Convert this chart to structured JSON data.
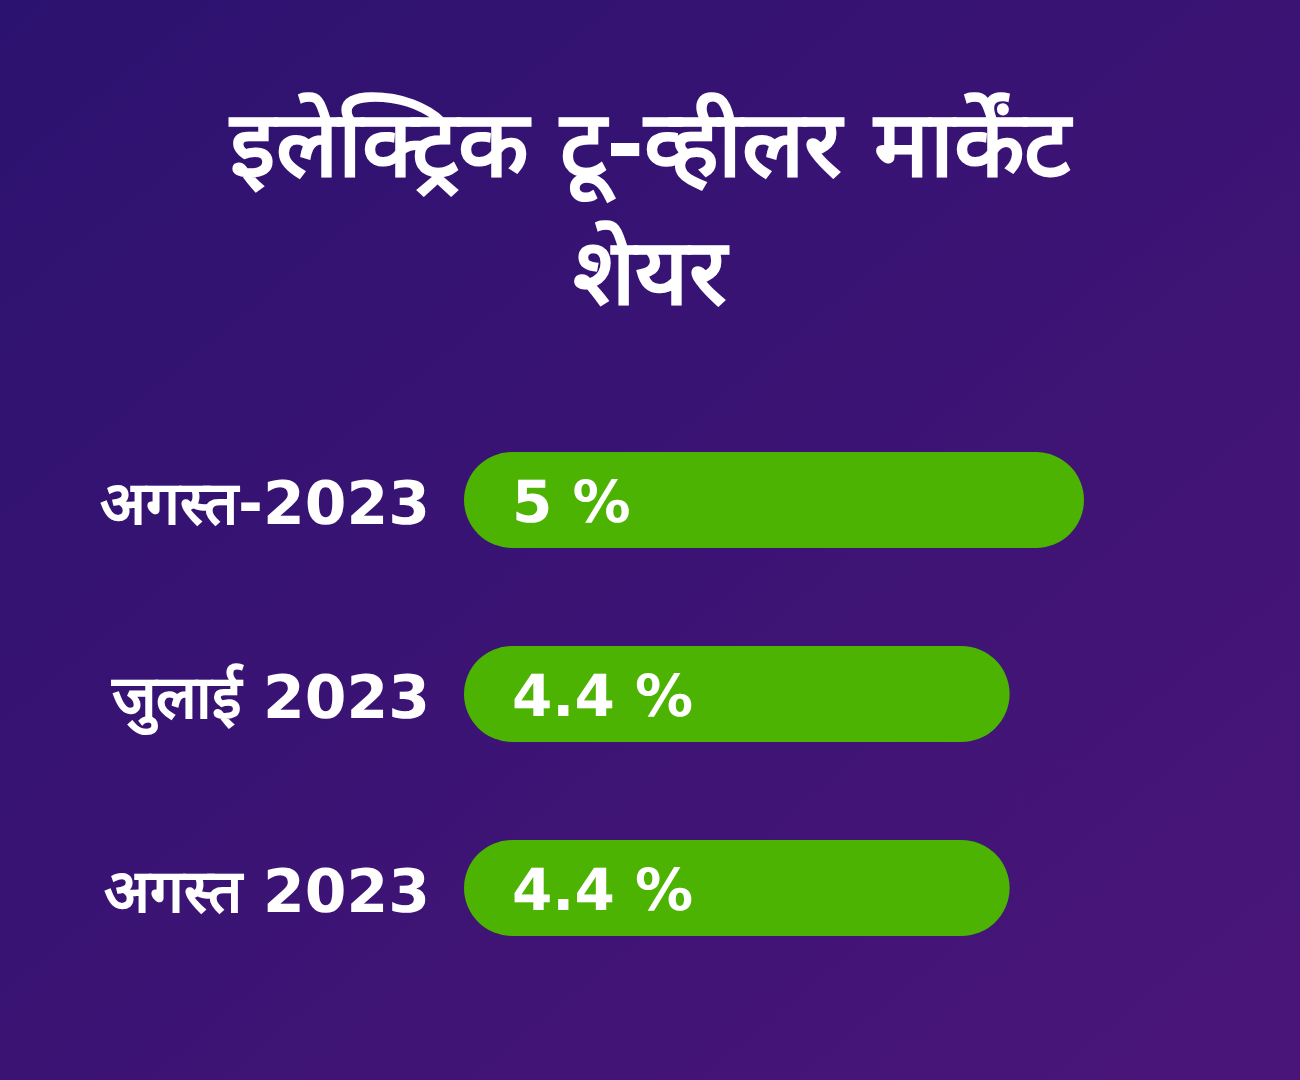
{
  "chart_data": {
    "type": "bar",
    "orientation": "horizontal",
    "title": "इलेक्ट्रिक टू-व्हीलर मार्केंट शेयर",
    "categories": [
      "अगस्त-2023",
      "जुलाई 2023",
      "अगस्त 2023"
    ],
    "values": [
      5,
      4.4,
      4.4
    ],
    "color": "#4cb302",
    "value_labels": [
      "5 %",
      "4.4 %",
      "4.4 %"
    ]
  }
}
